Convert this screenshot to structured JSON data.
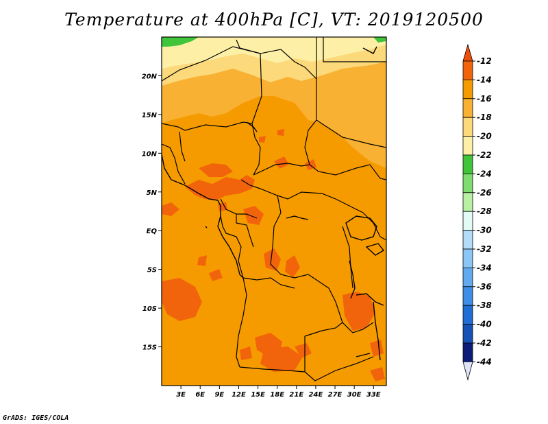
{
  "title": "Temperature at 400hPa [C], VT: 2019120500",
  "credit": "GrADS: IGES/COLA",
  "map": {
    "lat_labels": [
      "20N",
      "15N",
      "10N",
      "5N",
      "EQ",
      "5S",
      "10S",
      "15S"
    ],
    "lat_values": [
      20,
      15,
      10,
      5,
      0,
      -5,
      -10,
      -15
    ],
    "lon_labels": [
      "3E",
      "6E",
      "9E",
      "12E",
      "15E",
      "18E",
      "21E",
      "24E",
      "27E",
      "30E",
      "33E"
    ],
    "lon_values": [
      3,
      6,
      9,
      12,
      15,
      18,
      21,
      24,
      27,
      30,
      33
    ],
    "lat_range": [
      -20,
      25
    ],
    "lon_range": [
      0,
      35
    ]
  },
  "legend": {
    "labels": [
      "-12",
      "-14",
      "-16",
      "-18",
      "-20",
      "-22",
      "-24",
      "-26",
      "-28",
      "-30",
      "-32",
      "-34",
      "-36",
      "-38",
      "-40",
      "-42",
      "-44"
    ],
    "colors": [
      "#ee4e0c",
      "#f2640b",
      "#f59b00",
      "#f8b133",
      "#fcd97a",
      "#fdf0a6",
      "#3fc43a",
      "#7fdc6e",
      "#b8f0a4",
      "#e2fbf5",
      "#b2dcf7",
      "#8cc6f5",
      "#62aaf0",
      "#3c8ee6",
      "#1f6ed6",
      "#1453b5",
      "#0c1c78",
      "#dfe4f7"
    ]
  },
  "colors": {
    "base_field": "#f59b00",
    "warm_patch": "#f2640b",
    "cool_north": "#f8b133",
    "coolest_north": "#fcd97a",
    "palest": "#fdf0a6",
    "green": "#3fc43a"
  }
}
